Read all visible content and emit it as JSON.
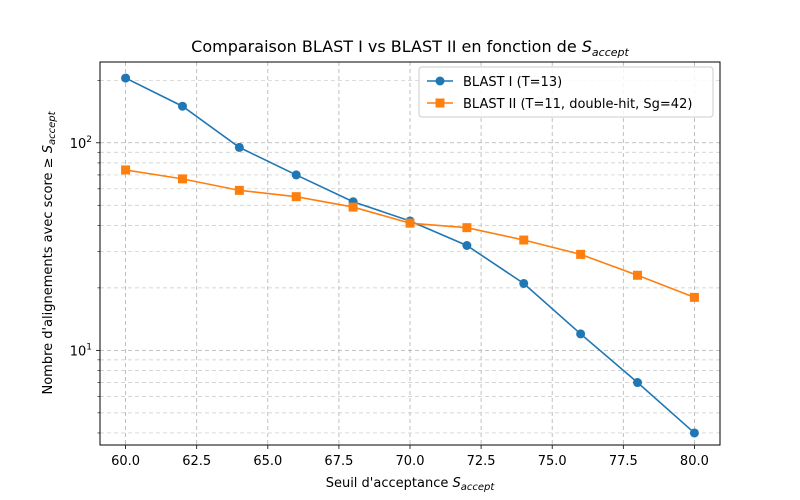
{
  "chart_data": {
    "type": "line",
    "title": "Comparaison BLAST I vs BLAST II en fonction de ",
    "title_math": "S",
    "title_sub": "accept",
    "xlabel": "Seuil d'acceptance ",
    "xlabel_math": "S",
    "xlabel_sub": "accept",
    "ylabel": "Nombre d'alignements avec score ≥ ",
    "ylabel_math": "S",
    "ylabel_sub": "accept",
    "x": [
      60,
      62,
      64,
      66,
      68,
      70,
      72,
      74,
      76,
      78,
      80
    ],
    "xlim": [
      59.1,
      80.9
    ],
    "ylim": [
      3.5,
      245
    ],
    "yscale": "log",
    "x_ticks": [
      60,
      62.5,
      65,
      67.5,
      70,
      72.5,
      75,
      77.5,
      80
    ],
    "x_tick_labels": [
      "60.0",
      "62.5",
      "65.0",
      "67.5",
      "70.0",
      "72.5",
      "75.0",
      "77.5",
      "80.0"
    ],
    "y_major_ticks": [
      10,
      100
    ],
    "grid": true,
    "legend_position": "top-right",
    "series": [
      {
        "name": "BLAST I (T=13)",
        "color": "#1f77b4",
        "marker": "circle",
        "values": [
          205,
          150,
          95,
          70,
          52,
          42,
          32,
          21,
          12,
          7,
          4
        ]
      },
      {
        "name": "BLAST II (T=11, double-hit, Sg=42)",
        "color": "#ff7f0e",
        "marker": "square",
        "values": [
          74,
          67,
          59,
          55,
          49,
          41,
          39,
          34,
          29,
          23,
          18
        ]
      }
    ]
  }
}
